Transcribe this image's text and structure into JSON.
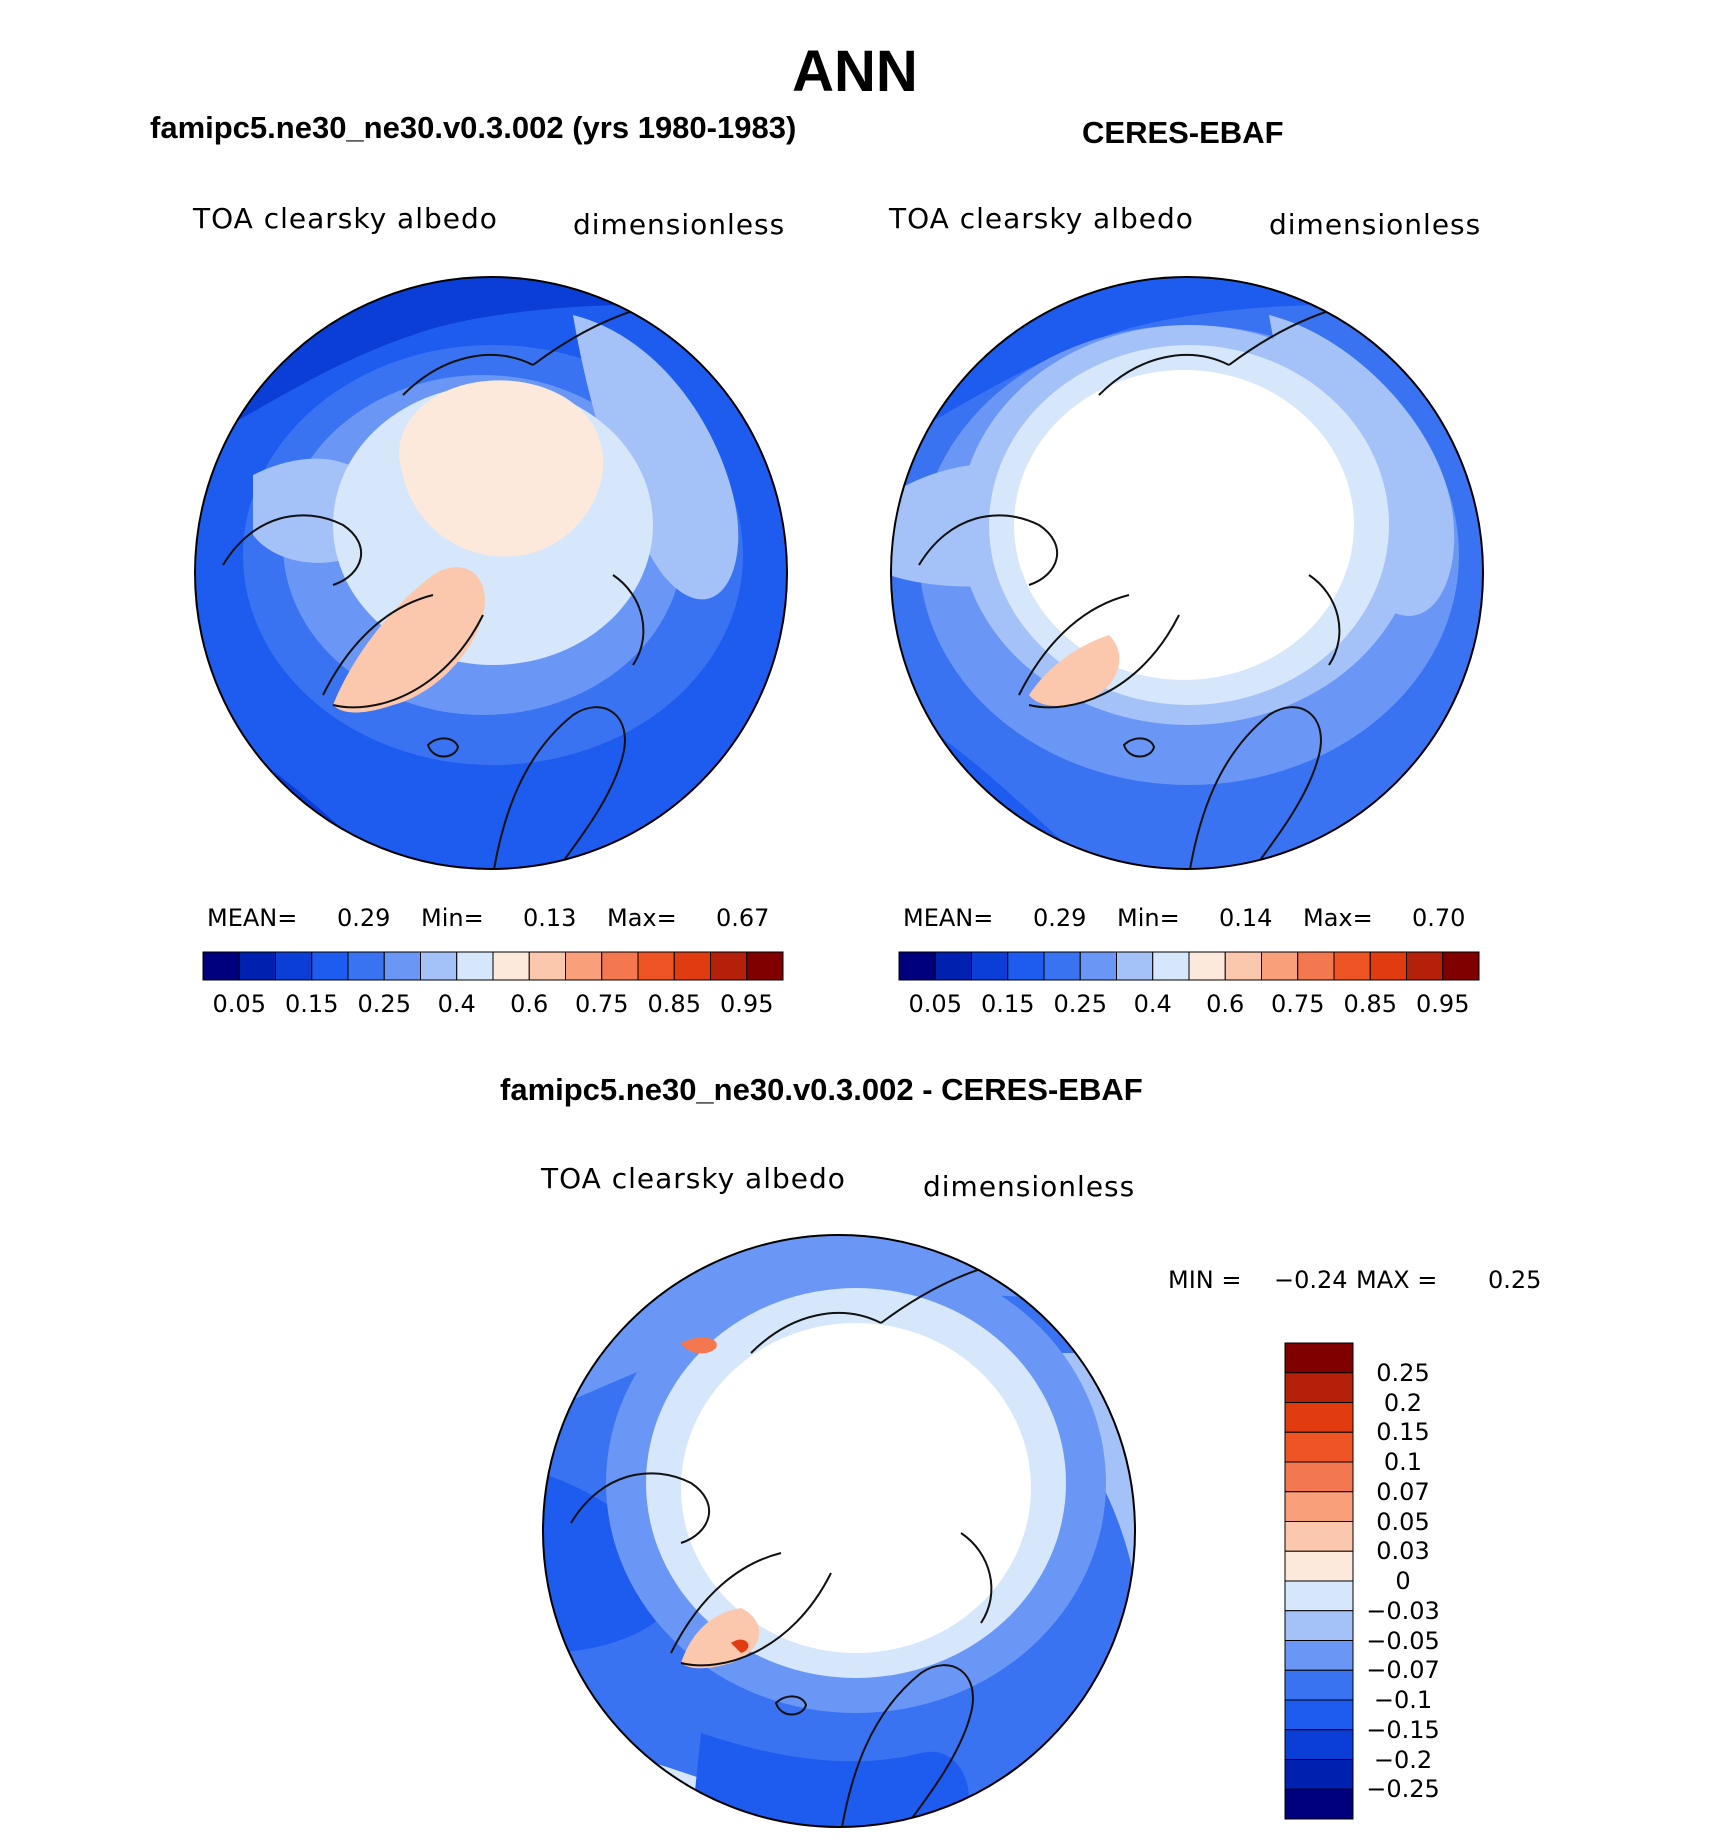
{
  "title": "ANN",
  "colors": {
    "abs_scale": [
      "#00007f",
      "#0020b0",
      "#0a3ed6",
      "#1e5cf0",
      "#3a73f2",
      "#6a97f5",
      "#a4c2f8",
      "#d6e6fb",
      "#fde9dc",
      "#fcc8ad",
      "#f9a07b",
      "#f4784f",
      "#ef5424",
      "#e03c10",
      "#b5200a",
      "#800000"
    ],
    "diff_scale": [
      "#00007f",
      "#0020b0",
      "#0a3ed6",
      "#1e5cf0",
      "#3a73f2",
      "#6a97f5",
      "#a4c2f8",
      "#d6e6fb",
      "#fde9dc",
      "#fcc8ad",
      "#f9a07b",
      "#f4784f",
      "#ef5424",
      "#e03c10",
      "#b5200a",
      "#800000"
    ]
  },
  "chart_data": [
    {
      "type": "heatmap",
      "projection": "north-polar-stereographic",
      "title": "famipc5.ne30_ne30.v0.3.002 (yrs 1980-1983)",
      "variable": "TOA clearsky albedo",
      "units": "dimensionless",
      "stats": {
        "mean_label": "MEAN=",
        "mean": "0.29",
        "min_label": "Min=",
        "min": "0.13",
        "max_label": "Max=",
        "max": "0.67"
      },
      "levels": [
        "0.05",
        "0.1",
        "0.15",
        "0.2",
        "0.25",
        "0.3",
        "0.4",
        "0.5",
        "0.6",
        "0.7",
        "0.75",
        "0.8",
        "0.85",
        "0.9",
        "0.95"
      ],
      "colorbar_tick_labels": [
        "0.05",
        "0.15",
        "0.25",
        "0.4",
        "0.6",
        "0.75",
        "0.85",
        "0.95"
      ],
      "colorbar_orientation": "horizontal"
    },
    {
      "type": "heatmap",
      "projection": "north-polar-stereographic",
      "title": "CERES-EBAF",
      "variable": "TOA clearsky albedo",
      "units": "dimensionless",
      "stats": {
        "mean_label": "MEAN=",
        "mean": "0.29",
        "min_label": "Min=",
        "min": "0.14",
        "max_label": "Max=",
        "max": "0.70"
      },
      "levels": [
        "0.05",
        "0.1",
        "0.15",
        "0.2",
        "0.25",
        "0.3",
        "0.4",
        "0.5",
        "0.6",
        "0.7",
        "0.75",
        "0.8",
        "0.85",
        "0.9",
        "0.95"
      ],
      "colorbar_tick_labels": [
        "0.05",
        "0.15",
        "0.25",
        "0.4",
        "0.6",
        "0.75",
        "0.85",
        "0.95"
      ],
      "colorbar_orientation": "horizontal"
    },
    {
      "type": "heatmap",
      "projection": "north-polar-stereographic",
      "title": "famipc5.ne30_ne30.v0.3.002 - CERES-EBAF",
      "variable": "TOA clearsky albedo",
      "units": "dimensionless",
      "stats": {
        "min_label": "MIN =",
        "min": "−0.24",
        "max_label": "MAX =",
        "max": "0.25"
      },
      "colorbar_tick_labels": [
        "0.25",
        "0.2",
        "0.15",
        "0.1",
        "0.07",
        "0.05",
        "0.03",
        "0",
        "−0.03",
        "−0.05",
        "−0.07",
        "−0.1",
        "−0.15",
        "−0.2",
        "−0.25"
      ],
      "colorbar_orientation": "vertical"
    }
  ]
}
